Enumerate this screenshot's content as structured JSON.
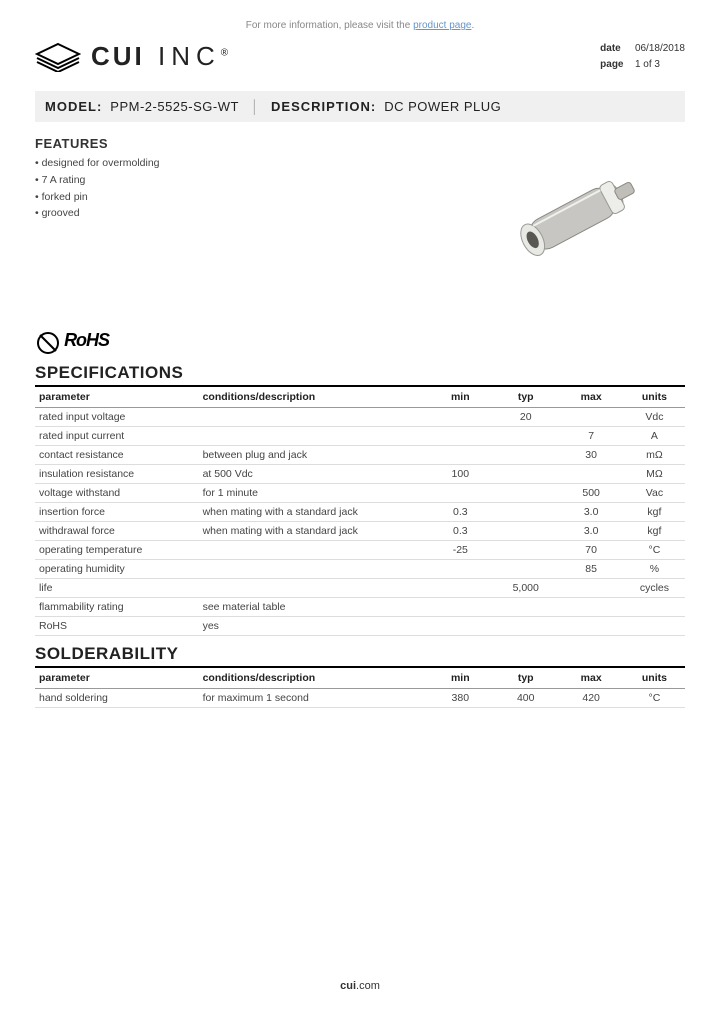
{
  "top_info_prefix": "For more information, please visit the ",
  "top_info_link": "product page",
  "company": "CUI",
  "company_suffix": "INC",
  "meta": {
    "date_label": "date",
    "date": "06/18/2018",
    "page_label": "page",
    "page": "1 of 3"
  },
  "model_bar": {
    "model_label": "MODEL:",
    "model": "PPM-2-5525-SG-WT",
    "desc_label": "DESCRIPTION:",
    "desc": "DC POWER PLUG"
  },
  "features": {
    "title": "FEATURES",
    "items": [
      "designed for overmolding",
      "7 A rating",
      "forked pin",
      "grooved"
    ]
  },
  "rohs_text": "RoHS",
  "spec_title": "SPECIFICATIONS",
  "spec_headers": {
    "parameter": "parameter",
    "conditions": "conditions/description",
    "min": "min",
    "typ": "typ",
    "max": "max",
    "units": "units"
  },
  "specs": [
    {
      "param": "rated input voltage",
      "cond": "",
      "min": "",
      "typ": "20",
      "max": "",
      "units": "Vdc"
    },
    {
      "param": "rated input current",
      "cond": "",
      "min": "",
      "typ": "",
      "max": "7",
      "units": "A"
    },
    {
      "param": "contact resistance",
      "cond": "between plug and jack",
      "min": "",
      "typ": "",
      "max": "30",
      "units": "mΩ"
    },
    {
      "param": "insulation resistance",
      "cond": "at 500 Vdc",
      "min": "100",
      "typ": "",
      "max": "",
      "units": "MΩ"
    },
    {
      "param": "voltage withstand",
      "cond": "for 1 minute",
      "min": "",
      "typ": "",
      "max": "500",
      "units": "Vac"
    },
    {
      "param": "insertion force",
      "cond": "when mating with a standard jack",
      "min": "0.3",
      "typ": "",
      "max": "3.0",
      "units": "kgf"
    },
    {
      "param": "withdrawal force",
      "cond": "when mating with a standard jack",
      "min": "0.3",
      "typ": "",
      "max": "3.0",
      "units": "kgf"
    },
    {
      "param": "operating temperature",
      "cond": "",
      "min": "-25",
      "typ": "",
      "max": "70",
      "units": "°C"
    },
    {
      "param": "operating humidity",
      "cond": "",
      "min": "",
      "typ": "",
      "max": "85",
      "units": "%"
    },
    {
      "param": "life",
      "cond": "",
      "min": "",
      "typ": "5,000",
      "max": "",
      "units": "cycles"
    },
    {
      "param": "flammability rating",
      "cond": "see material table",
      "min": "",
      "typ": "",
      "max": "",
      "units": ""
    },
    {
      "param": "RoHS",
      "cond": "yes",
      "min": "",
      "typ": "",
      "max": "",
      "units": ""
    }
  ],
  "solder_title": "SOLDERABILITY",
  "solder": [
    {
      "param": "hand soldering",
      "cond": "for maximum 1 second",
      "min": "380",
      "typ": "400",
      "max": "420",
      "units": "°C"
    }
  ],
  "footer_bold": "cui",
  "footer_rest": ".com",
  "product_svg": {
    "body_fill": "#c8c6c2",
    "body_stroke": "#8a8882",
    "ring_fill": "#e8e8e4",
    "tip_fill": "#ededea",
    "hole_fill": "#5a5852"
  }
}
